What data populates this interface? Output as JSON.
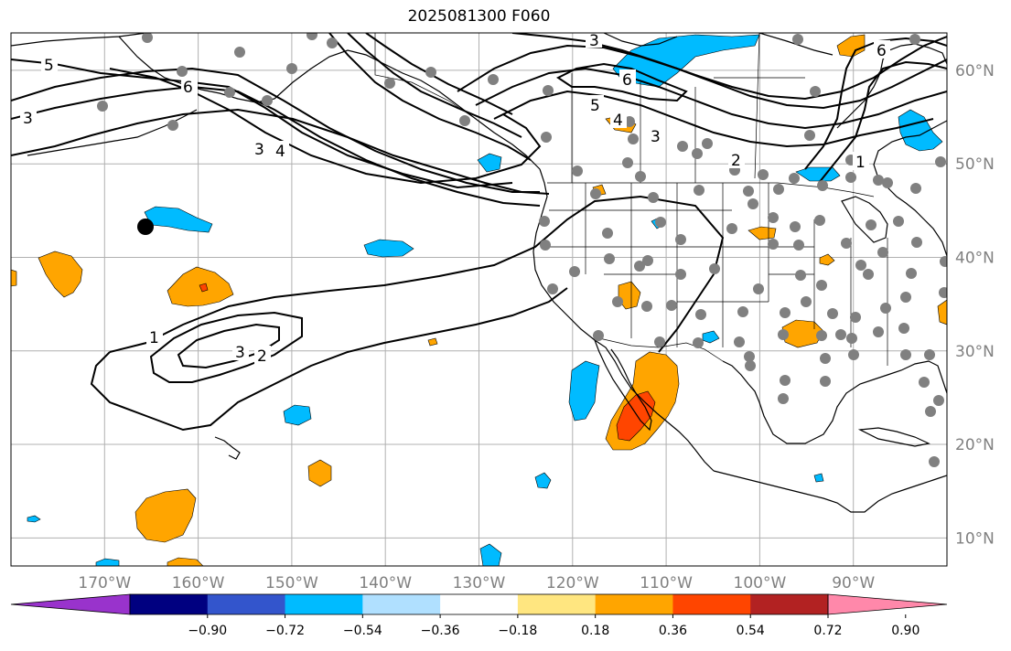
{
  "title": "2025081300 F060",
  "map": {
    "lon_range": [
      -180,
      -80
    ],
    "lat_range": [
      7,
      64
    ],
    "lat_ticks": [
      {
        "value": 10,
        "label": "10°N"
      },
      {
        "value": 20,
        "label": "20°N"
      },
      {
        "value": 30,
        "label": "30°N"
      },
      {
        "value": 40,
        "label": "40°N"
      },
      {
        "value": 50,
        "label": "50°N"
      },
      {
        "value": 60,
        "label": "60°N"
      }
    ],
    "lon_ticks": [
      {
        "value": -170,
        "label": "170°W"
      },
      {
        "value": -160,
        "label": "160°W"
      },
      {
        "value": -150,
        "label": "150°W"
      },
      {
        "value": -140,
        "label": "140°W"
      },
      {
        "value": -130,
        "label": "130°W"
      },
      {
        "value": -120,
        "label": "120°W"
      },
      {
        "value": -110,
        "label": "110°W"
      },
      {
        "value": -100,
        "label": "100°W"
      },
      {
        "value": -90,
        "label": "90°W"
      }
    ],
    "contour_labels": [
      "1",
      "2",
      "3",
      "4",
      "5",
      "6"
    ],
    "colors": {
      "land_outline": "#000000",
      "grid": "#b0b0b0",
      "station": "#808080",
      "marker": "#000000"
    }
  },
  "colorbar": {
    "tick_labels": [
      "−0.90",
      "−0.72",
      "−0.54",
      "−0.36",
      "−0.18",
      "0.18",
      "0.36",
      "0.54",
      "0.72",
      "0.90"
    ],
    "colors": [
      "#9933cc",
      "#000080",
      "#3355cc",
      "#00bbff",
      "#b0e0ff",
      "#ffffff",
      "#ffe680",
      "#ffa500",
      "#ff4500",
      "#b22222",
      "#ff88aa"
    ]
  }
}
